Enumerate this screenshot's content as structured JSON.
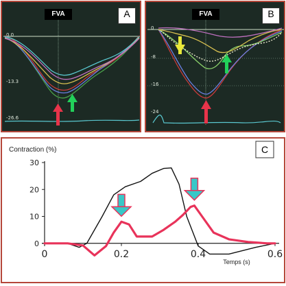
{
  "panel_a": {
    "header": "FVA",
    "label": "A",
    "y_ticks": [
      "0.0",
      "-13.3",
      "-26.6"
    ]
  },
  "panel_b": {
    "header": "FVA",
    "label": "B",
    "y_ticks": [
      "0",
      "-8",
      "-16",
      "-24"
    ]
  },
  "colors": {
    "frame_border": "#b5473a",
    "red_arrow": "#e8344a",
    "green_arrow": "#22d05a",
    "yellow_arrow": "#e8e83a",
    "cyan_arrow": "#38c8c8",
    "curve_red": "#e8335a"
  },
  "chart_data": [
    {
      "type": "line",
      "panel": "C",
      "label": "C",
      "ylabel": "Contraction (%)",
      "xlabel": "Temps (s)",
      "xlim": [
        0,
        0.6
      ],
      "ylim": [
        -10,
        30
      ],
      "x_ticks": [
        "0",
        "0.2",
        "0.4",
        "0.6"
      ],
      "y_ticks": [
        "0",
        "10",
        "20",
        "30"
      ],
      "series": [
        {
          "color": "#111111",
          "x": [
            0.0,
            0.06,
            0.09,
            0.11,
            0.15,
            0.18,
            0.21,
            0.25,
            0.28,
            0.31,
            0.33,
            0.35,
            0.37,
            0.4,
            0.43,
            0.48,
            0.55,
            0.6
          ],
          "y": [
            0.0,
            0.0,
            -1.5,
            0.0,
            10,
            18,
            21,
            23,
            26,
            27.8,
            28,
            22,
            10,
            -1,
            -4,
            -4,
            -1.5,
            0.0
          ]
        },
        {
          "color": "#e8335a",
          "x": [
            0.0,
            0.06,
            0.1,
            0.13,
            0.16,
            0.18,
            0.2,
            0.22,
            0.24,
            0.28,
            0.31,
            0.34,
            0.36,
            0.38,
            0.39,
            0.41,
            0.44,
            0.48,
            0.53,
            0.58,
            0.6
          ],
          "y": [
            0.0,
            0.0,
            -0.8,
            -4.5,
            -1,
            4,
            8,
            7,
            2.5,
            2.5,
            5,
            8,
            10.5,
            13.5,
            14,
            10,
            4,
            1.5,
            0.5,
            0.0,
            0.0
          ]
        }
      ],
      "annotations": [
        {
          "type": "down-arrow",
          "color": "#38c8c8",
          "x": 0.2,
          "y": 8
        },
        {
          "type": "down-arrow",
          "color": "#38c8c8",
          "x": 0.39,
          "y": 14
        }
      ]
    }
  ]
}
